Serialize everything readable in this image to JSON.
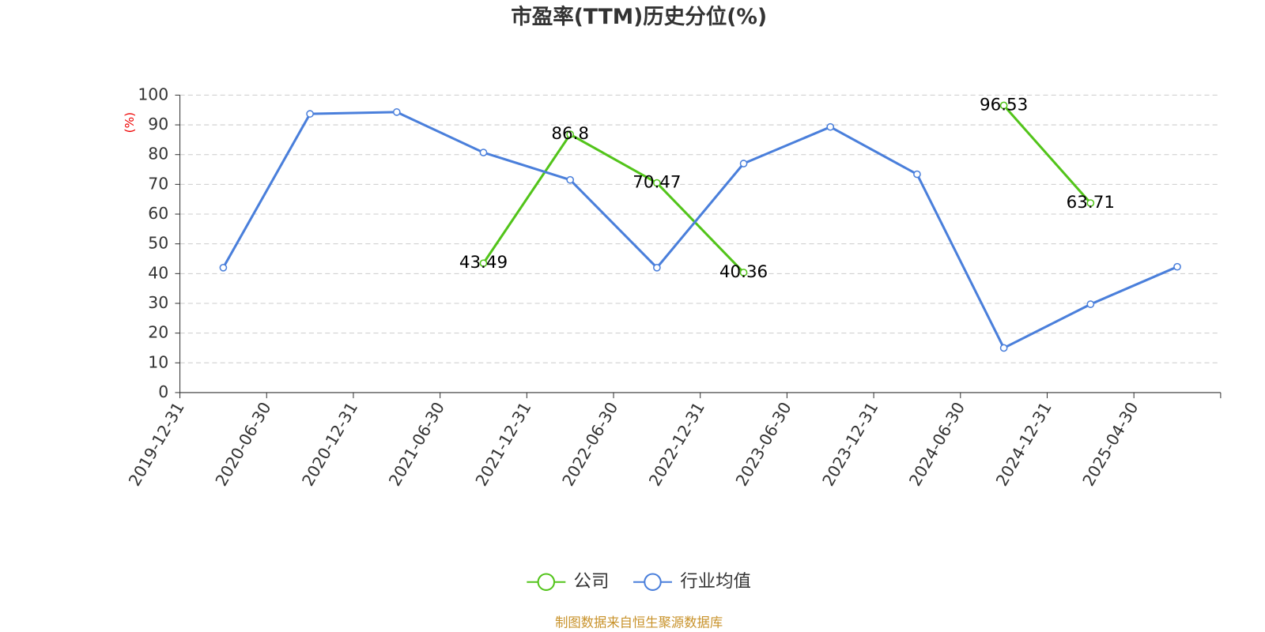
{
  "chart_data": {
    "type": "line",
    "title": "市盈率(TTM)历史分位(%)",
    "y_label": "(%)",
    "source": "制图数据来自恒生聚源数据库",
    "categories": [
      "2019-12-31",
      "2020-06-30",
      "2020-12-31",
      "2021-06-30",
      "2021-12-31",
      "2022-06-30",
      "2022-12-31",
      "2023-06-30",
      "2023-12-31",
      "2024-06-30",
      "2024-12-31",
      "2025-04-30"
    ],
    "series": [
      {
        "name": "公司",
        "color": "#52c41a",
        "show_labels": true,
        "values": [
          null,
          null,
          null,
          43.49,
          86.8,
          70.47,
          40.36,
          null,
          null,
          96.53,
          63.71,
          null
        ]
      },
      {
        "name": "行业均值",
        "color": "#4a7fdb",
        "show_labels": false,
        "values": [
          42,
          93.7,
          94.3,
          80.7,
          71.5,
          42,
          77,
          89.3,
          73.4,
          15,
          29.7,
          42.3
        ]
      }
    ],
    "ylim": [
      0,
      100
    ],
    "yticks": [
      0,
      10,
      20,
      30,
      40,
      50,
      60,
      70,
      80,
      90,
      100
    ],
    "grid": true
  }
}
